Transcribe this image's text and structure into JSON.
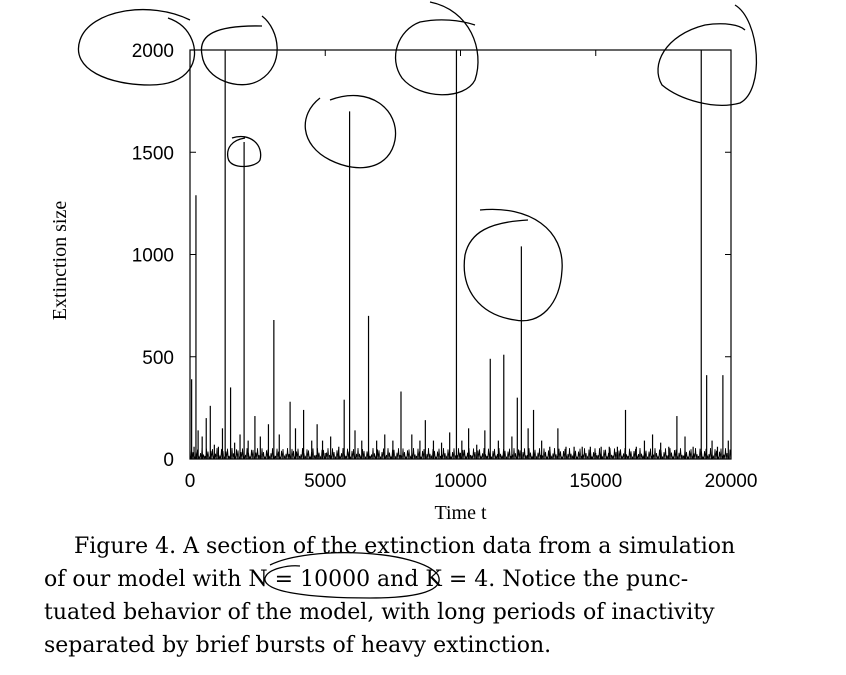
{
  "chart_data": {
    "type": "bar",
    "xlabel": "Time t",
    "ylabel": "Extinction size",
    "xlim": [
      0,
      20000
    ],
    "ylim": [
      0,
      2000
    ],
    "xticks": [
      "0",
      "5000",
      "10000",
      "15000",
      "20000"
    ],
    "yticks": [
      "0",
      "500",
      "1000",
      "1500",
      "2000"
    ],
    "grid": false,
    "series": [
      {
        "x": [
          60,
          150,
          220,
          300,
          450,
          600,
          750,
          900,
          1050,
          1200,
          1300,
          1500,
          1650,
          1850,
          2000,
          2150,
          2400,
          2600,
          2900,
          3100,
          3300,
          3700,
          3900,
          4200,
          4500,
          4700,
          4900,
          5200,
          5500,
          5700,
          5900,
          6100,
          6350,
          6600,
          6900,
          7200,
          7500,
          7800,
          8200,
          8500,
          8700,
          9000,
          9300,
          9600,
          9850,
          10050,
          10300,
          10600,
          10900,
          11100,
          11400,
          11600,
          11900,
          12100,
          12250,
          12500,
          12700,
          13000,
          13300,
          13600,
          13900,
          14200,
          14500,
          14800,
          15200,
          15500,
          15800,
          16100,
          16500,
          16800,
          17100,
          17400,
          17700,
          18000,
          18300,
          18600,
          18900,
          19100,
          19300,
          19500,
          19700,
          19900
        ],
        "y": [
          390,
          60,
          1290,
          140,
          110,
          200,
          260,
          70,
          60,
          150,
          2000,
          350,
          80,
          120,
          1550,
          90,
          210,
          110,
          170,
          680,
          120,
          280,
          150,
          240,
          90,
          170,
          90,
          110,
          60,
          290,
          1700,
          140,
          90,
          700,
          90,
          120,
          90,
          330,
          120,
          90,
          190,
          90,
          80,
          130,
          2000,
          90,
          150,
          70,
          140,
          490,
          90,
          510,
          110,
          300,
          1040,
          150,
          240,
          90,
          60,
          150,
          60,
          60,
          60,
          60,
          60,
          60,
          60,
          240,
          60,
          90,
          120,
          80,
          60,
          210,
          110,
          60,
          2000,
          410,
          90,
          60,
          410,
          90
        ]
      }
    ]
  },
  "caption": {
    "line1": "Figure 4.  A section of the extinction data from a simulation",
    "line2": "of our model with N = 10000 and K = 4.  Notice the punc-",
    "line3": "tuated behavior of the model, with long periods of inactivity",
    "line4": "separated by brief bursts of heavy extinction."
  }
}
